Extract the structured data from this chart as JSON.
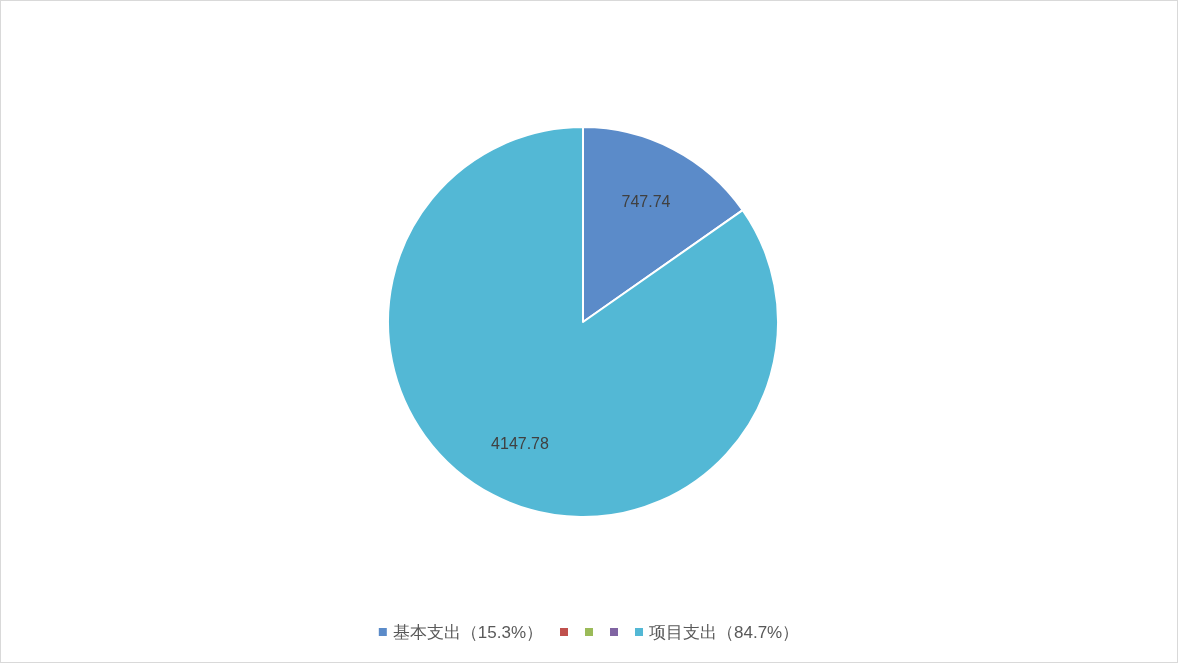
{
  "chart_data": {
    "type": "pie",
    "categories": [
      "基本支出（15.3%）",
      null,
      null,
      null,
      "项目支出（84.7%）"
    ],
    "values": [
      747.74,
      0,
      0,
      0,
      4147.78
    ],
    "colors": [
      "#5b8bc9",
      "#c0504d",
      "#9bbb59",
      "#8064a2",
      "#53b8d5"
    ],
    "data_labels": true,
    "legend": "bottom"
  }
}
